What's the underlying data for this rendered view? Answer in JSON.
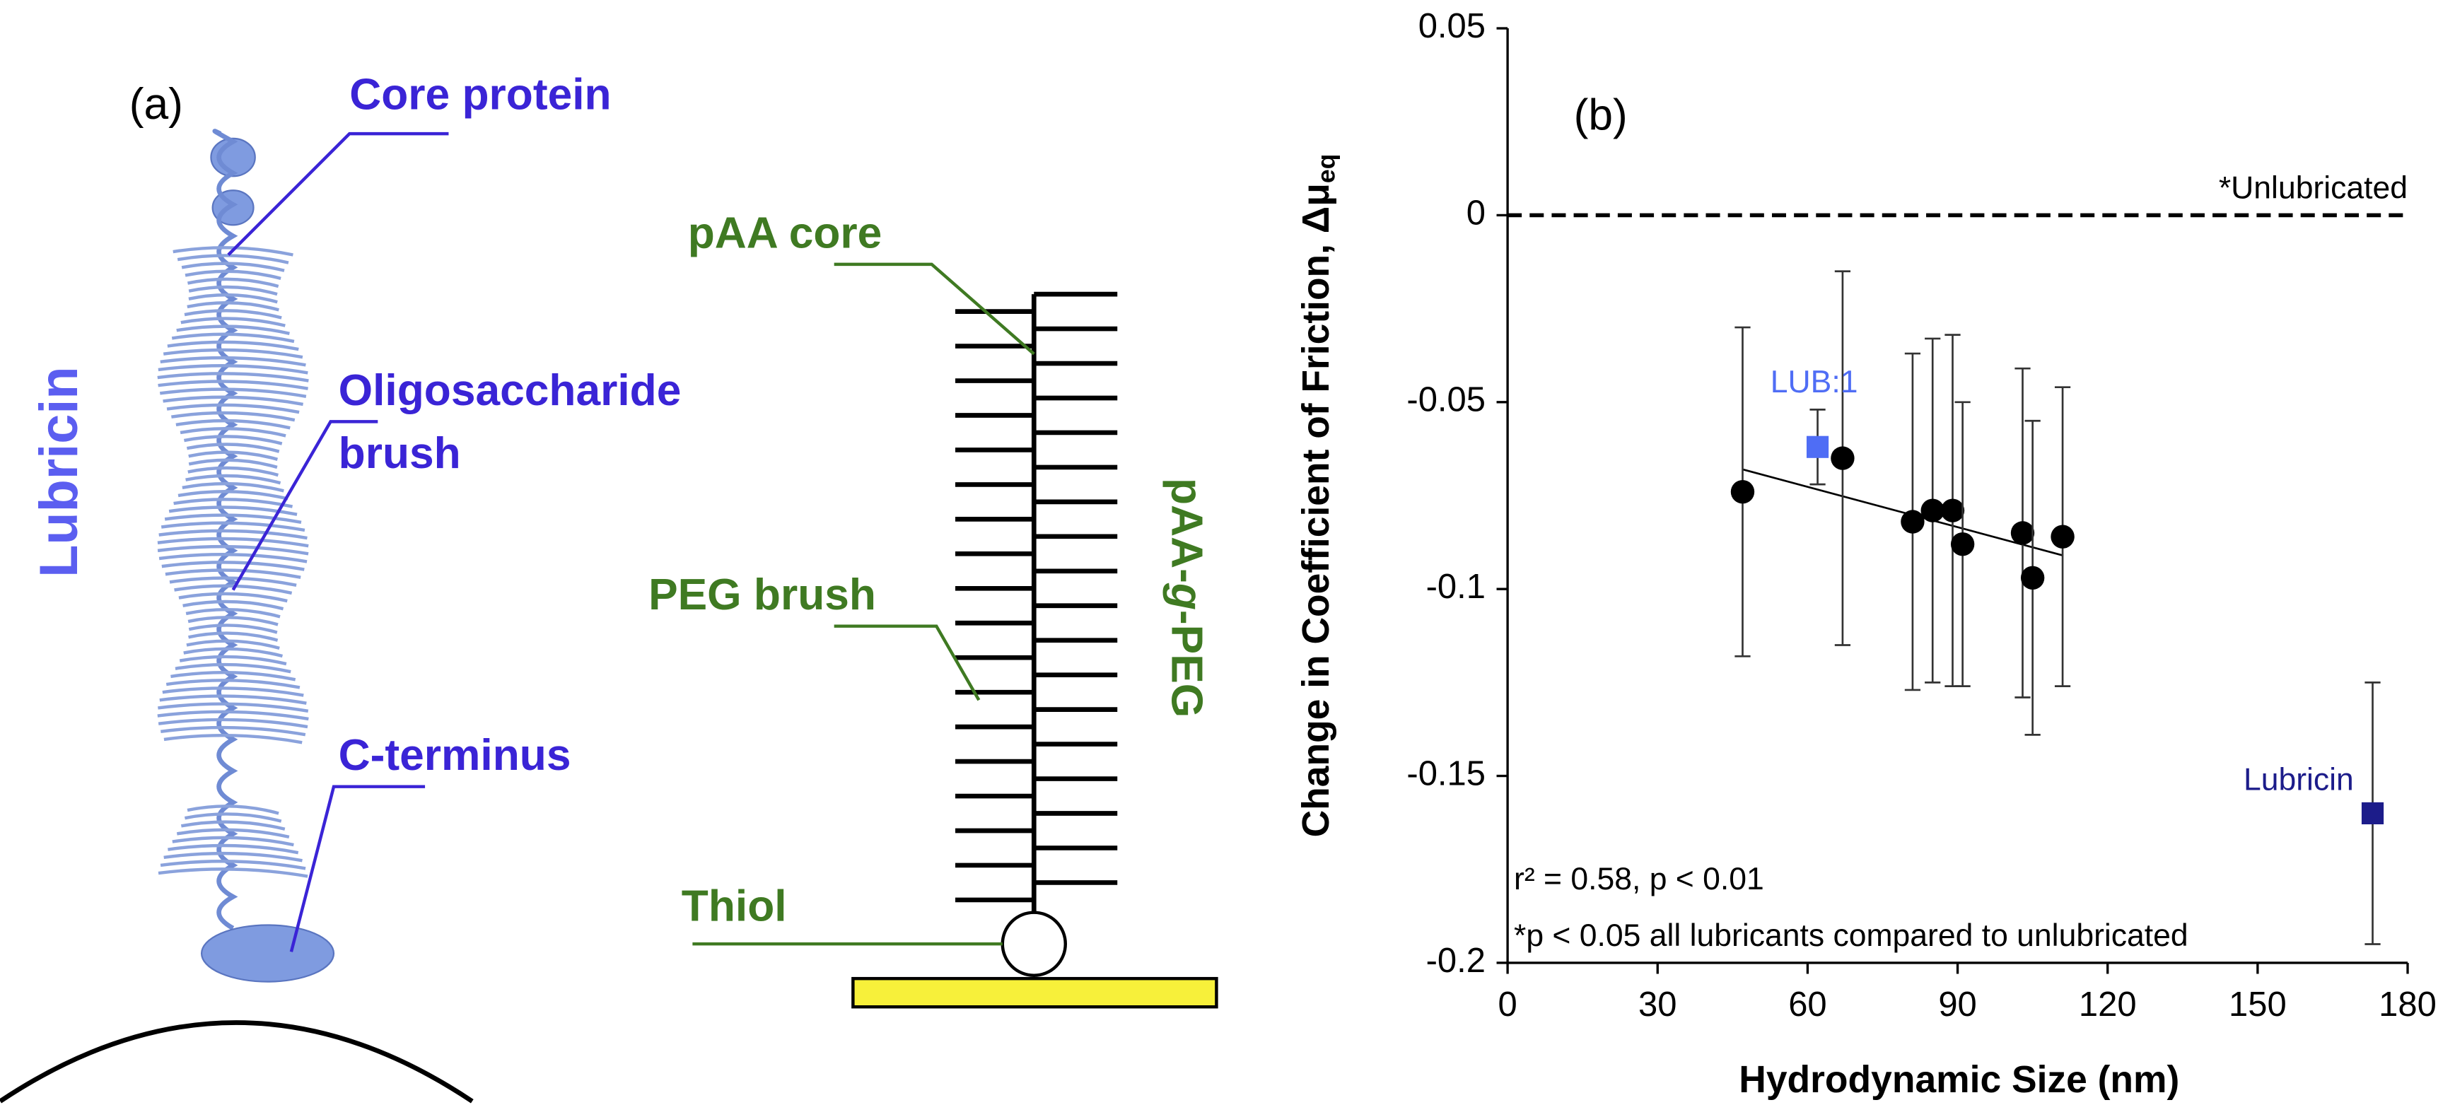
{
  "diagram": {
    "panel_label": "(a)",
    "core_protein": "Core protein",
    "lubricin": "Lubricin",
    "oligosaccharide": [
      "Oligosaccharide",
      "brush"
    ],
    "c_terminus": "C-terminus",
    "paa_core": "pAA core",
    "peg_brush": "PEG brush",
    "paa_g_peg": [
      "pAA-",
      "g",
      "-PEG"
    ],
    "thiol": "Thiol"
  },
  "chart_data": {
    "type": "scatter",
    "panel_label": "(b)",
    "xlabel": "Hydrodynamic Size (nm)",
    "ylabel": "Change in Coefficient of Friction, Δμ",
    "ylabel_sub": "eq",
    "xlim": [
      0,
      180
    ],
    "xticks": [
      0,
      30,
      60,
      90,
      120,
      150,
      180
    ],
    "ylim": [
      -0.2,
      0.05
    ],
    "yticks": [
      0.05,
      0,
      -0.05,
      -0.1,
      -0.15,
      -0.2
    ],
    "reference": {
      "value": 0,
      "label": "*Unlubricated"
    },
    "series": [
      {
        "color": "#000000",
        "marker": "circle",
        "x": [
          47,
          67,
          81,
          85,
          89,
          91,
          103,
          105,
          111
        ],
        "values": [
          -0.074,
          -0.065,
          -0.082,
          -0.079,
          -0.079,
          -0.088,
          -0.085,
          -0.097,
          -0.086
        ],
        "errors": [
          0.044,
          0.05,
          0.045,
          0.046,
          0.047,
          0.038,
          0.044,
          0.042,
          0.04
        ]
      },
      {
        "name": "LUB:1",
        "color": "#4f6df5",
        "marker": "square",
        "x": [
          62
        ],
        "values": [
          -0.062
        ],
        "errors": [
          0.01
        ]
      },
      {
        "name": "Lubricin",
        "color": "#1c1c8a",
        "marker": "square",
        "x": [
          173
        ],
        "values": [
          -0.16
        ],
        "errors": [
          0.035
        ]
      }
    ],
    "trendline": {
      "x": [
        47,
        111
      ],
      "values": [
        -0.068,
        -0.091
      ]
    },
    "annotations": [
      "r² = 0.58, p < 0.01",
      "*p < 0.05 all lubricants compared to unlubricated"
    ]
  }
}
